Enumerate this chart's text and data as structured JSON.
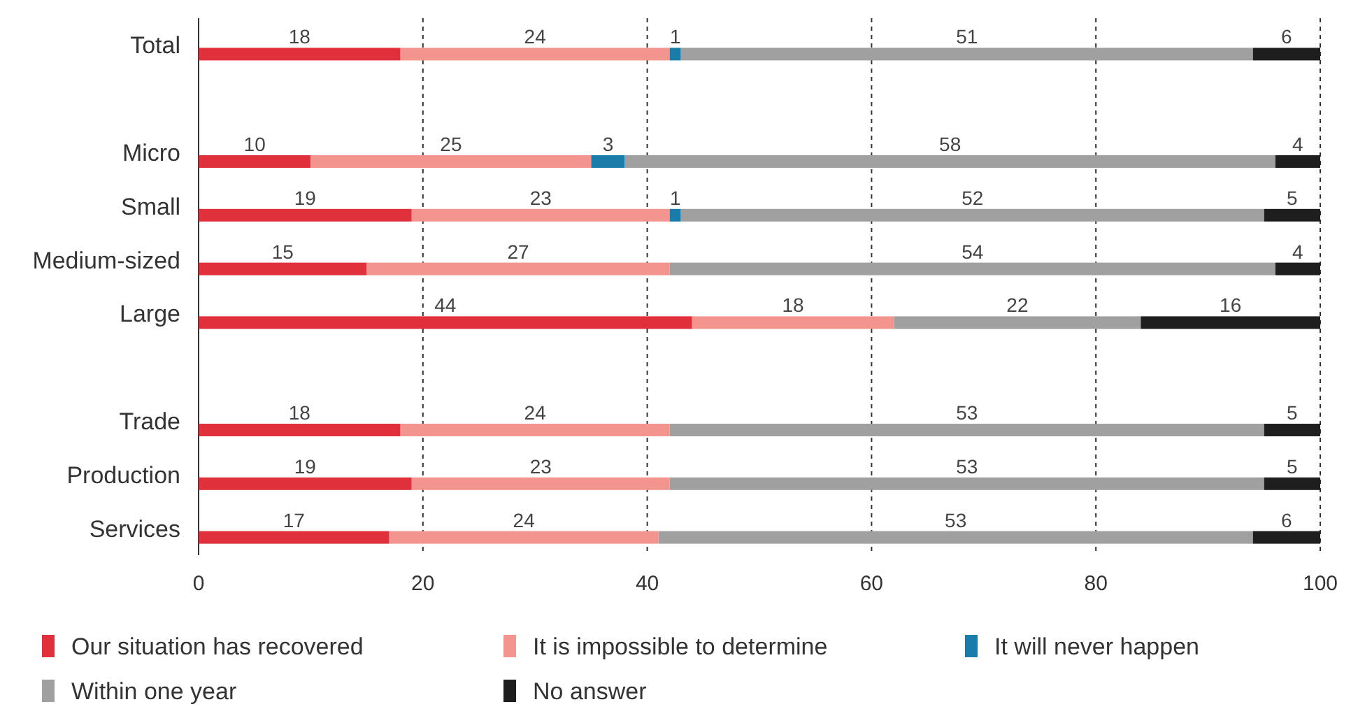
{
  "chart_data": {
    "type": "bar",
    "orientation": "horizontal",
    "stacked": true,
    "categories": [
      "Total",
      null,
      "Micro",
      "Small",
      "Medium-sized",
      "Large",
      null,
      "Trade",
      "Production",
      "Services"
    ],
    "series": [
      {
        "name": "Our situation has recovered",
        "color": "#e0303b",
        "values": [
          18,
          null,
          10,
          19,
          15,
          44,
          null,
          18,
          19,
          17
        ]
      },
      {
        "name": "It is impossible to determine",
        "color": "#f4948f",
        "values": [
          24,
          null,
          25,
          23,
          27,
          18,
          null,
          24,
          23,
          24
        ]
      },
      {
        "name": "It will never happen",
        "color": "#1a7ca8",
        "values": [
          1,
          null,
          3,
          1,
          null,
          null,
          null,
          null,
          null,
          null
        ]
      },
      {
        "name": "Within one year",
        "color": "#a0a0a0",
        "values": [
          51,
          null,
          58,
          52,
          54,
          22,
          null,
          53,
          53,
          53
        ]
      },
      {
        "name": "No answer",
        "color": "#1e1e1e",
        "values": [
          6,
          null,
          4,
          5,
          4,
          16,
          null,
          5,
          5,
          6
        ]
      }
    ],
    "xlim": [
      0,
      100
    ],
    "xticks": [
      0,
      20,
      40,
      60,
      80,
      100
    ],
    "grid": "x",
    "legend": "bottom",
    "data_labels": true
  }
}
